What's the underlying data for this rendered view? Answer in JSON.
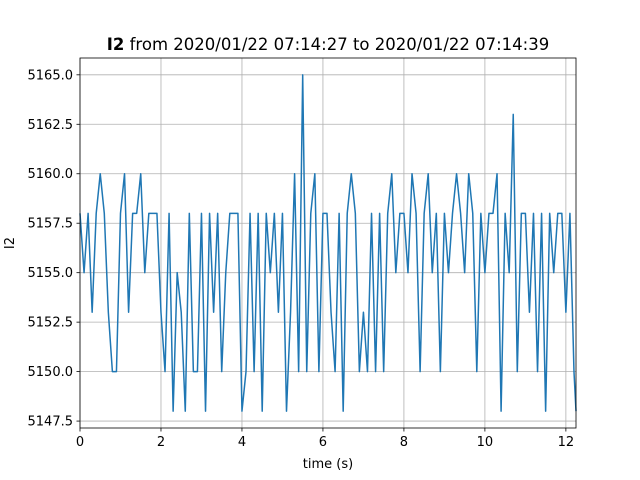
{
  "chart_data": {
    "type": "line",
    "title": {
      "bold": "I2",
      "text": "from 2020/01/22 07:14:27 to 2020/01/22 07:14:39"
    },
    "xlabel": "time (s)",
    "ylabel": "I2",
    "xlim": [
      0,
      12.25
    ],
    "ylim": [
      5147.15,
      5165.85
    ],
    "xticks": [
      0,
      2,
      4,
      6,
      8,
      10,
      12
    ],
    "yticks": [
      5147.5,
      {
        "value": 5150,
        "label": "5150.0"
      },
      5152.5,
      {
        "value": 5155,
        "label": "5155.0"
      },
      5157.5,
      {
        "value": 5160,
        "label": "5160.0"
      },
      5162.5,
      {
        "value": 5165,
        "label": "5165.0"
      }
    ],
    "grid": true,
    "x": [
      0,
      0.1,
      0.2,
      0.3,
      0.4,
      0.5,
      0.6,
      0.7,
      0.8,
      0.9,
      1,
      1.1,
      1.2,
      1.3,
      1.4,
      1.5,
      1.6,
      1.7,
      1.8,
      1.9,
      2,
      2.1,
      2.2,
      2.3,
      2.4,
      2.5,
      2.6,
      2.7,
      2.8,
      2.9,
      3,
      3.1,
      3.2,
      3.3,
      3.4,
      3.5,
      3.6,
      3.7,
      3.8,
      3.9,
      4,
      4.1,
      4.2,
      4.3,
      4.4,
      4.5,
      4.6,
      4.7,
      4.8,
      4.9,
      5,
      5.1,
      5.2,
      5.3,
      5.4,
      5.5,
      5.6,
      5.7,
      5.8,
      5.9,
      6,
      6.1,
      6.2,
      6.3,
      6.4,
      6.5,
      6.6,
      6.7,
      6.8,
      6.9,
      7,
      7.1,
      7.2,
      7.3,
      7.4,
      7.5,
      7.6,
      7.7,
      7.8,
      7.9,
      8,
      8.1,
      8.2,
      8.3,
      8.4,
      8.5,
      8.6,
      8.7,
      8.8,
      8.9,
      9,
      9.1,
      9.2,
      9.3,
      9.4,
      9.5,
      9.6,
      9.7,
      9.8,
      9.9,
      10,
      10.1,
      10.2,
      10.3,
      10.4,
      10.5,
      10.6,
      10.7,
      10.8,
      10.9,
      11,
      11.1,
      11.2,
      11.3,
      11.4,
      11.5,
      11.6,
      11.7,
      11.8,
      11.9,
      12,
      12.1,
      12.2,
      12.25
    ],
    "series": [
      {
        "name": "I2",
        "color": "#1f77b4",
        "values": [
          5158,
          5155,
          5158,
          5153,
          5158,
          5160,
          5158,
          5153,
          5150,
          5150,
          5158,
          5160,
          5153,
          5158,
          5158,
          5160,
          5155,
          5158,
          5158,
          5158,
          5153,
          5150,
          5158,
          5148,
          5155,
          5153,
          5148,
          5158,
          5150,
          5150,
          5158,
          5148,
          5158,
          5153,
          5158,
          5150,
          5155,
          5158,
          5158,
          5158,
          5148,
          5150,
          5158,
          5150,
          5158,
          5148,
          5158,
          5155,
          5158,
          5153,
          5158,
          5148,
          5153,
          5160,
          5150,
          5165,
          5150,
          5158,
          5160,
          5150,
          5158,
          5158,
          5153,
          5150,
          5158,
          5148,
          5158,
          5160,
          5158,
          5150,
          5153,
          5150,
          5158,
          5150,
          5158,
          5150,
          5158,
          5160,
          5155,
          5158,
          5158,
          5155,
          5160,
          5158,
          5150,
          5158,
          5160,
          5155,
          5158,
          5150,
          5158,
          5155,
          5158,
          5160,
          5158,
          5155,
          5160,
          5158,
          5150,
          5158,
          5155,
          5158,
          5158,
          5160,
          5148,
          5158,
          5155,
          5163,
          5150,
          5158,
          5158,
          5153,
          5158,
          5150,
          5158,
          5148,
          5158,
          5155,
          5158,
          5158,
          5153,
          5158,
          5150,
          5148
        ]
      }
    ]
  }
}
